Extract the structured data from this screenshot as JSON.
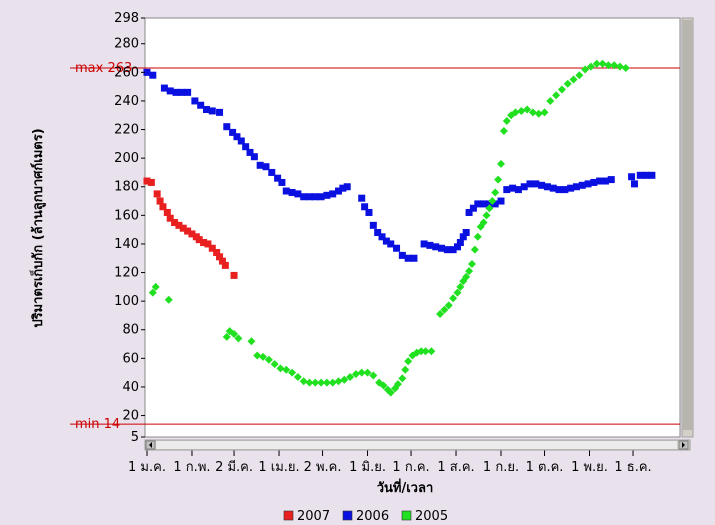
{
  "chart_data": {
    "type": "scatter",
    "title": "",
    "xlabel": "วันที่/เวลา",
    "ylabel": "ปริมาตรเก็บกัก (ล้านลูกบาศก์เมตร)",
    "ylim": [
      5,
      298
    ],
    "xlim": [
      0,
      366
    ],
    "y_ticks": [
      298,
      280,
      260,
      240,
      220,
      200,
      180,
      160,
      140,
      120,
      100,
      80,
      60,
      40,
      20,
      5
    ],
    "x_ticks": [
      {
        "day": 0,
        "label": "1 ม.ค."
      },
      {
        "day": 31,
        "label": "1 ก.พ."
      },
      {
        "day": 60,
        "label": "2 มี.ค."
      },
      {
        "day": 91,
        "label": "1 เม.ย."
      },
      {
        "day": 121,
        "label": "2 พ.ค."
      },
      {
        "day": 152,
        "label": "1 มิ.ย."
      },
      {
        "day": 182,
        "label": "1 ก.ค."
      },
      {
        "day": 213,
        "label": "1 ส.ค."
      },
      {
        "day": 244,
        "label": "1 ก.ย."
      },
      {
        "day": 274,
        "label": "1 ต.ค."
      },
      {
        "day": 305,
        "label": "1 พ.ย."
      },
      {
        "day": 335,
        "label": "1 ธ.ค."
      }
    ],
    "reference_lines": [
      {
        "label": "max 263",
        "value": 263,
        "color": "#cc0000"
      },
      {
        "label": "min 14",
        "value": 14,
        "color": "#cc0000"
      }
    ],
    "grid": false,
    "legend_position": "bottom",
    "series": [
      {
        "name": "2007",
        "color": "#e82020",
        "marker": "square",
        "points": [
          [
            0,
            184
          ],
          [
            3,
            183
          ],
          [
            7,
            175
          ],
          [
            9,
            170
          ],
          [
            11,
            166
          ],
          [
            14,
            162
          ],
          [
            16,
            158
          ],
          [
            19,
            155
          ],
          [
            22,
            153
          ],
          [
            25,
            151
          ],
          [
            28,
            149
          ],
          [
            31,
            147
          ],
          [
            34,
            145
          ],
          [
            36,
            143
          ],
          [
            39,
            141
          ],
          [
            42,
            140
          ],
          [
            45,
            137
          ],
          [
            48,
            134
          ],
          [
            50,
            131
          ],
          [
            52,
            128
          ],
          [
            54,
            125
          ],
          [
            60,
            118
          ]
        ]
      },
      {
        "name": "2006",
        "color": "#0a10e0",
        "marker": "square",
        "points": [
          [
            0,
            260
          ],
          [
            4,
            258
          ],
          [
            12,
            249
          ],
          [
            16,
            247
          ],
          [
            20,
            246
          ],
          [
            24,
            246
          ],
          [
            28,
            246
          ],
          [
            33,
            240
          ],
          [
            37,
            237
          ],
          [
            41,
            234
          ],
          [
            45,
            233
          ],
          [
            50,
            232
          ],
          [
            55,
            222
          ],
          [
            59,
            218
          ],
          [
            62,
            215
          ],
          [
            65,
            212
          ],
          [
            68,
            208
          ],
          [
            71,
            204
          ],
          [
            74,
            201
          ],
          [
            78,
            195
          ],
          [
            82,
            194
          ],
          [
            86,
            190
          ],
          [
            90,
            186
          ],
          [
            93,
            183
          ],
          [
            96,
            177
          ],
          [
            100,
            176
          ],
          [
            104,
            175
          ],
          [
            108,
            173
          ],
          [
            112,
            173
          ],
          [
            116,
            173
          ],
          [
            120,
            173
          ],
          [
            124,
            174
          ],
          [
            128,
            175
          ],
          [
            132,
            177
          ],
          [
            135,
            179
          ],
          [
            138,
            180
          ],
          [
            148,
            172
          ],
          [
            150,
            166
          ],
          [
            153,
            162
          ],
          [
            156,
            153
          ],
          [
            159,
            148
          ],
          [
            162,
            145
          ],
          [
            165,
            142
          ],
          [
            168,
            140
          ],
          [
            172,
            137
          ],
          [
            176,
            132
          ],
          [
            180,
            130
          ],
          [
            184,
            130
          ],
          [
            191,
            140
          ],
          [
            195,
            139
          ],
          [
            199,
            138
          ],
          [
            203,
            137
          ],
          [
            207,
            136
          ],
          [
            211,
            136
          ],
          [
            214,
            138
          ],
          [
            216,
            141
          ],
          [
            218,
            145
          ],
          [
            220,
            148
          ],
          [
            222,
            162
          ],
          [
            225,
            165
          ],
          [
            228,
            168
          ],
          [
            232,
            168
          ],
          [
            236,
            168
          ],
          [
            240,
            168
          ],
          [
            244,
            170
          ],
          [
            248,
            178
          ],
          [
            252,
            179
          ],
          [
            256,
            178
          ],
          [
            260,
            180
          ],
          [
            264,
            182
          ],
          [
            268,
            182
          ],
          [
            272,
            181
          ],
          [
            276,
            180
          ],
          [
            280,
            179
          ],
          [
            284,
            178
          ],
          [
            288,
            178
          ],
          [
            292,
            179
          ],
          [
            296,
            180
          ],
          [
            300,
            181
          ],
          [
            304,
            182
          ],
          [
            308,
            183
          ],
          [
            312,
            184
          ],
          [
            316,
            184
          ],
          [
            320,
            185
          ],
          [
            334,
            187
          ],
          [
            336,
            182
          ],
          [
            340,
            188
          ],
          [
            344,
            188
          ],
          [
            348,
            188
          ]
        ]
      },
      {
        "name": "2005",
        "color": "#20e020",
        "marker": "diamond",
        "points": [
          [
            4,
            106
          ],
          [
            6,
            110
          ],
          [
            15,
            101
          ],
          [
            55,
            75
          ],
          [
            57,
            79
          ],
          [
            60,
            77
          ],
          [
            63,
            74
          ],
          [
            72,
            72
          ],
          [
            76,
            62
          ],
          [
            80,
            61
          ],
          [
            84,
            59
          ],
          [
            88,
            56
          ],
          [
            92,
            53
          ],
          [
            96,
            52
          ],
          [
            100,
            50
          ],
          [
            104,
            47
          ],
          [
            108,
            44
          ],
          [
            112,
            43
          ],
          [
            116,
            43
          ],
          [
            120,
            43
          ],
          [
            124,
            43
          ],
          [
            128,
            43
          ],
          [
            132,
            44
          ],
          [
            136,
            45
          ],
          [
            140,
            47
          ],
          [
            144,
            49
          ],
          [
            148,
            50
          ],
          [
            152,
            50
          ],
          [
            156,
            48
          ],
          [
            160,
            43
          ],
          [
            163,
            41
          ],
          [
            166,
            38
          ],
          [
            168,
            36
          ],
          [
            171,
            39
          ],
          [
            173,
            42
          ],
          [
            176,
            46
          ],
          [
            178,
            52
          ],
          [
            180,
            58
          ],
          [
            183,
            62
          ],
          [
            186,
            64
          ],
          [
            189,
            65
          ],
          [
            192,
            65
          ],
          [
            196,
            65
          ],
          [
            202,
            91
          ],
          [
            205,
            94
          ],
          [
            208,
            97
          ],
          [
            211,
            102
          ],
          [
            214,
            106
          ],
          [
            216,
            110
          ],
          [
            218,
            114
          ],
          [
            220,
            117
          ],
          [
            222,
            121
          ],
          [
            224,
            126
          ],
          [
            226,
            136
          ],
          [
            228,
            145
          ],
          [
            230,
            152
          ],
          [
            232,
            155
          ],
          [
            234,
            160
          ],
          [
            236,
            165
          ],
          [
            238,
            170
          ],
          [
            240,
            176
          ],
          [
            242,
            185
          ],
          [
            244,
            196
          ],
          [
            246,
            219
          ],
          [
            248,
            226
          ],
          [
            251,
            230
          ],
          [
            254,
            232
          ],
          [
            258,
            233
          ],
          [
            262,
            234
          ],
          [
            266,
            232
          ],
          [
            270,
            231
          ],
          [
            274,
            232
          ],
          [
            278,
            240
          ],
          [
            282,
            244
          ],
          [
            286,
            248
          ],
          [
            290,
            252
          ],
          [
            294,
            255
          ],
          [
            298,
            258
          ],
          [
            302,
            262
          ],
          [
            306,
            264
          ],
          [
            310,
            266
          ],
          [
            314,
            266
          ],
          [
            318,
            265
          ],
          [
            322,
            265
          ],
          [
            326,
            264
          ],
          [
            330,
            263
          ]
        ]
      }
    ]
  }
}
